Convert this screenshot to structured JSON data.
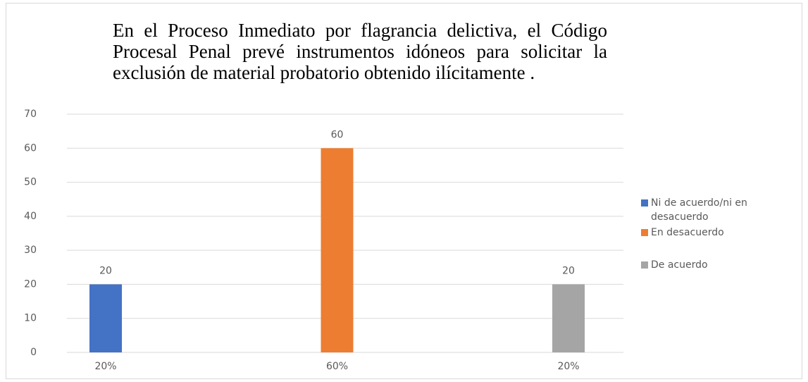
{
  "chart_data": {
    "type": "bar",
    "title": "En el Proceso Inmediato por flagrancia delictiva, el Código Procesal Penal prevé instrumentos idóneos para solicitar la exclusión de material probatorio obtenido ilícitamente .",
    "categories": [
      "20%",
      "60%",
      "20%"
    ],
    "series": [
      {
        "name": "Ni de acuerdo/ni en desacuerdo",
        "color": "#4472c4",
        "values": [
          20,
          null,
          null
        ]
      },
      {
        "name": "En desacuerdo",
        "color": "#ed7d31",
        "values": [
          null,
          60,
          null
        ]
      },
      {
        "name": "De acuerdo",
        "color": "#a5a5a5",
        "values": [
          null,
          null,
          20
        ]
      }
    ],
    "ylim": [
      0,
      70
    ],
    "yticks": [
      0,
      10,
      20,
      30,
      40,
      50,
      60,
      70
    ],
    "grid": true,
    "legend": "right"
  }
}
